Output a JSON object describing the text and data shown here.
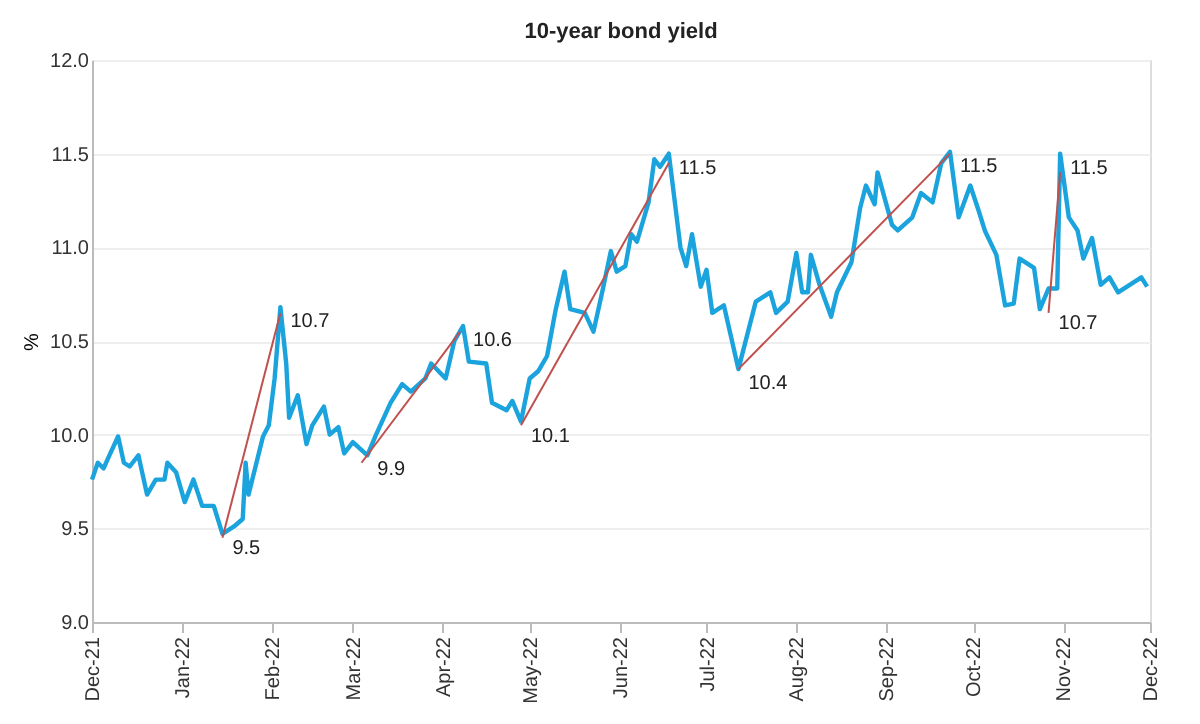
{
  "chart_data": {
    "type": "line",
    "title": "10-year bond yield",
    "ylabel": "%",
    "xlim": [
      "2021-12-01",
      "2022-12-01"
    ],
    "xticks": [
      {
        "value": "2021-12-01",
        "label": "Dec-21"
      },
      {
        "value": "2022-01-01",
        "label": "Jan-22"
      },
      {
        "value": "2022-02-01",
        "label": "Feb-22"
      },
      {
        "value": "2022-03-01",
        "label": "Mar-22"
      },
      {
        "value": "2022-04-01",
        "label": "Apr-22"
      },
      {
        "value": "2022-05-01",
        "label": "May-22"
      },
      {
        "value": "2022-06-01",
        "label": "Jun-22"
      },
      {
        "value": "2022-07-01",
        "label": "Jul-22"
      },
      {
        "value": "2022-08-01",
        "label": "Aug-22"
      },
      {
        "value": "2022-09-01",
        "label": "Sep-22"
      },
      {
        "value": "2022-10-01",
        "label": "Oct-22"
      },
      {
        "value": "2022-11-01",
        "label": "Nov-22"
      },
      {
        "value": "2022-12-01",
        "label": "Dec-22"
      }
    ],
    "ylim": [
      9.0,
      12.0
    ],
    "yticks": [
      {
        "value": 9.0,
        "label": "9.0"
      },
      {
        "value": 9.5,
        "label": "9.5"
      },
      {
        "value": 10.0,
        "label": "10.0"
      },
      {
        "value": 10.5,
        "label": "10.5"
      },
      {
        "value": 11.0,
        "label": "11.0"
      },
      {
        "value": 11.5,
        "label": "11.5"
      },
      {
        "value": 12.0,
        "label": "12.0"
      }
    ],
    "grid": "y",
    "line_style": "solid",
    "marker": "none",
    "series": [
      {
        "color": "#1aa3dc",
        "x": [
          "2021-12-01",
          "2021-12-03",
          "2021-12-05",
          "2021-12-07",
          "2021-12-10",
          "2021-12-12",
          "2021-12-14",
          "2021-12-17",
          "2021-12-20",
          "2021-12-23",
          "2021-12-26",
          "2021-12-27",
          "2021-12-30",
          "2022-01-02",
          "2022-01-05",
          "2022-01-08",
          "2022-01-12",
          "2022-01-15",
          "2022-01-19",
          "2022-01-22",
          "2022-01-23",
          "2022-01-24",
          "2022-01-29",
          "2022-01-31",
          "2022-02-02",
          "2022-02-04",
          "2022-02-06",
          "2022-02-07",
          "2022-02-10",
          "2022-02-13",
          "2022-02-15",
          "2022-02-19",
          "2022-02-21",
          "2022-02-24",
          "2022-02-26",
          "2022-03-01",
          "2022-03-06",
          "2022-03-09",
          "2022-03-14",
          "2022-03-18",
          "2022-03-21",
          "2022-03-26",
          "2022-03-28",
          "2022-04-02",
          "2022-04-05",
          "2022-04-08",
          "2022-04-10",
          "2022-04-16",
          "2022-04-18",
          "2022-04-23",
          "2022-04-25",
          "2022-04-28",
          "2022-05-01",
          "2022-05-04",
          "2022-05-07",
          "2022-05-10",
          "2022-05-13",
          "2022-05-15",
          "2022-05-20",
          "2022-05-23",
          "2022-05-26",
          "2022-05-29",
          "2022-05-31",
          "2022-06-03",
          "2022-06-05",
          "2022-06-07",
          "2022-06-11",
          "2022-06-13",
          "2022-06-15",
          "2022-06-18",
          "2022-06-22",
          "2022-06-24",
          "2022-06-26",
          "2022-06-29",
          "2022-07-01",
          "2022-07-03",
          "2022-07-07",
          "2022-07-12",
          "2022-07-18",
          "2022-07-23",
          "2022-07-25",
          "2022-07-29",
          "2022-08-01",
          "2022-08-03",
          "2022-08-05",
          "2022-08-06",
          "2022-08-09",
          "2022-08-13",
          "2022-08-15",
          "2022-08-20",
          "2022-08-23",
          "2022-08-25",
          "2022-08-28",
          "2022-08-29",
          "2022-09-03",
          "2022-09-05",
          "2022-09-10",
          "2022-09-13",
          "2022-09-17",
          "2022-09-20",
          "2022-09-23",
          "2022-09-26",
          "2022-09-30",
          "2022-10-03",
          "2022-10-05",
          "2022-10-09",
          "2022-10-12",
          "2022-10-15",
          "2022-10-17",
          "2022-10-22",
          "2022-10-24",
          "2022-10-27",
          "2022-10-30",
          "2022-10-31",
          "2022-11-03",
          "2022-11-06",
          "2022-11-08",
          "2022-11-11",
          "2022-11-14",
          "2022-11-17",
          "2022-11-20",
          "2022-11-24",
          "2022-11-28",
          "2022-11-30"
        ],
        "values": [
          9.76,
          9.85,
          9.82,
          9.89,
          9.99,
          9.85,
          9.83,
          9.89,
          9.68,
          9.76,
          9.76,
          9.85,
          9.8,
          9.64,
          9.76,
          9.62,
          9.62,
          9.47,
          9.51,
          9.55,
          9.85,
          9.68,
          9.99,
          10.05,
          10.3,
          10.68,
          10.38,
          10.09,
          10.21,
          9.95,
          10.05,
          10.15,
          10.0,
          10.04,
          9.9,
          9.96,
          9.89,
          10.0,
          10.17,
          10.27,
          10.23,
          10.3,
          10.38,
          10.3,
          10.5,
          10.58,
          10.39,
          10.38,
          10.17,
          10.13,
          10.18,
          10.07,
          10.3,
          10.34,
          10.42,
          10.67,
          10.87,
          10.67,
          10.65,
          10.55,
          10.76,
          10.98,
          10.87,
          10.9,
          11.07,
          11.03,
          11.24,
          11.47,
          11.43,
          11.5,
          11.0,
          10.9,
          11.07,
          10.79,
          10.88,
          10.65,
          10.69,
          10.35,
          10.71,
          10.76,
          10.65,
          10.71,
          10.97,
          10.76,
          10.76,
          10.96,
          10.8,
          10.63,
          10.76,
          10.92,
          11.21,
          11.33,
          11.23,
          11.4,
          11.12,
          11.09,
          11.16,
          11.29,
          11.24,
          11.45,
          11.51,
          11.16,
          11.33,
          11.19,
          11.09,
          10.96,
          10.69,
          10.7,
          10.94,
          10.89,
          10.67,
          10.78,
          10.78,
          11.5,
          11.16,
          11.09,
          10.94,
          11.05,
          10.8,
          10.84,
          10.76,
          10.8,
          10.84,
          10.79
        ]
      },
      {
        "color": "#c0504d",
        "x": [
          "2022-01-15",
          "2022-02-04"
        ],
        "values": [
          9.45,
          10.65
        ]
      },
      {
        "color": "#c0504d",
        "x": [
          "2022-03-04",
          "2022-04-07"
        ],
        "values": [
          9.85,
          10.55
        ]
      },
      {
        "color": "#c0504d",
        "x": [
          "2022-04-28",
          "2022-06-18"
        ],
        "values": [
          10.05,
          11.45
        ]
      },
      {
        "color": "#c0504d",
        "x": [
          "2022-07-12",
          "2022-09-23"
        ],
        "values": [
          10.35,
          11.5
        ]
      },
      {
        "color": "#c0504d",
        "x": [
          "2022-10-27",
          "2022-10-31"
        ],
        "values": [
          10.65,
          11.4
        ]
      }
    ],
    "annotations": [
      {
        "text": "9.5",
        "x": "2022-01-15",
        "y": 9.47
      },
      {
        "text": "10.7",
        "x": "2022-02-04",
        "y": 10.68
      },
      {
        "text": "9.9",
        "x": "2022-03-06",
        "y": 9.89
      },
      {
        "text": "10.6",
        "x": "2022-04-08",
        "y": 10.58
      },
      {
        "text": "10.1",
        "x": "2022-04-28",
        "y": 10.07
      },
      {
        "text": "11.5",
        "x": "2022-06-18",
        "y": 11.5
      },
      {
        "text": "10.4",
        "x": "2022-07-12",
        "y": 10.35
      },
      {
        "text": "11.5",
        "x": "2022-09-23",
        "y": 11.51
      },
      {
        "text": "10.7",
        "x": "2022-10-27",
        "y": 10.67
      },
      {
        "text": "11.5",
        "x": "2022-10-31",
        "y": 11.5
      }
    ]
  }
}
